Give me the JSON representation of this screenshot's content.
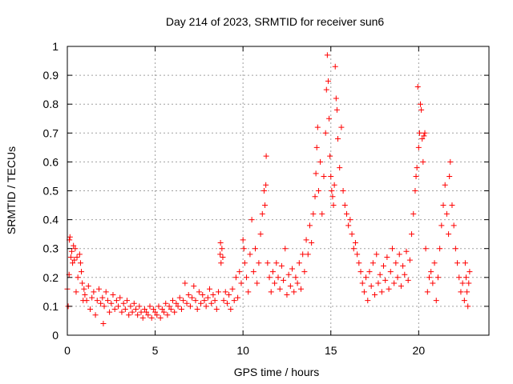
{
  "chart_data": {
    "type": "scatter",
    "title": "Day 214 of 2023, SRMTID for receiver sun6",
    "xlabel": "GPS time / hours",
    "ylabel": "SRMTID / TECUs",
    "xlim": [
      0,
      24
    ],
    "ylim": [
      0,
      1
    ],
    "x_ticks": [
      0,
      5,
      10,
      15,
      20
    ],
    "x_tick_labels": [
      "0",
      "5",
      "10",
      "15",
      "20"
    ],
    "y_ticks": [
      0,
      0.1,
      0.2,
      0.3,
      0.4,
      0.5,
      0.6,
      0.7,
      0.8,
      0.9,
      1
    ],
    "y_tick_labels": [
      "0",
      "0.1",
      "0.2",
      "0.3",
      "0.4",
      "0.5",
      "0.6",
      "0.7",
      "0.8",
      "0.9",
      "1"
    ],
    "grid": true,
    "marker": "+",
    "marker_color": "#ff0000",
    "series": [
      {
        "name": "sun6",
        "points": [
          [
            0.0,
            0.16
          ],
          [
            0.05,
            0.1
          ],
          [
            0.1,
            0.21
          ],
          [
            0.12,
            0.33
          ],
          [
            0.15,
            0.34
          ],
          [
            0.2,
            0.27
          ],
          [
            0.25,
            0.29
          ],
          [
            0.3,
            0.25
          ],
          [
            0.35,
            0.31
          ],
          [
            0.4,
            0.26
          ],
          [
            0.45,
            0.3
          ],
          [
            0.5,
            0.15
          ],
          [
            0.55,
            0.27
          ],
          [
            0.6,
            0.2
          ],
          [
            0.7,
            0.28
          ],
          [
            0.75,
            0.25
          ],
          [
            0.8,
            0.22
          ],
          [
            0.85,
            0.18
          ],
          [
            0.9,
            0.12
          ],
          [
            0.95,
            0.16
          ],
          [
            1.0,
            0.14
          ],
          [
            1.1,
            0.12
          ],
          [
            1.2,
            0.17
          ],
          [
            1.3,
            0.09
          ],
          [
            1.4,
            0.13
          ],
          [
            1.5,
            0.15
          ],
          [
            1.6,
            0.07
          ],
          [
            1.7,
            0.12
          ],
          [
            1.8,
            0.16
          ],
          [
            1.9,
            0.11
          ],
          [
            2.0,
            0.13
          ],
          [
            2.05,
            0.04
          ],
          [
            2.1,
            0.1
          ],
          [
            2.2,
            0.15
          ],
          [
            2.3,
            0.12
          ],
          [
            2.4,
            0.08
          ],
          [
            2.5,
            0.11
          ],
          [
            2.6,
            0.14
          ],
          [
            2.7,
            0.09
          ],
          [
            2.8,
            0.12
          ],
          [
            2.9,
            0.1
          ],
          [
            3.0,
            0.13
          ],
          [
            3.1,
            0.08
          ],
          [
            3.2,
            0.11
          ],
          [
            3.3,
            0.09
          ],
          [
            3.4,
            0.12
          ],
          [
            3.5,
            0.07
          ],
          [
            3.6,
            0.1
          ],
          [
            3.7,
            0.08
          ],
          [
            3.8,
            0.11
          ],
          [
            3.9,
            0.09
          ],
          [
            4.0,
            0.07
          ],
          [
            4.1,
            0.1
          ],
          [
            4.2,
            0.08
          ],
          [
            4.3,
            0.06
          ],
          [
            4.4,
            0.09
          ],
          [
            4.5,
            0.08
          ],
          [
            4.6,
            0.07
          ],
          [
            4.7,
            0.1
          ],
          [
            4.8,
            0.06
          ],
          [
            4.9,
            0.09
          ],
          [
            5.0,
            0.08
          ],
          [
            5.1,
            0.07
          ],
          [
            5.2,
            0.1
          ],
          [
            5.3,
            0.06
          ],
          [
            5.4,
            0.09
          ],
          [
            5.5,
            0.08
          ],
          [
            5.6,
            0.11
          ],
          [
            5.7,
            0.07
          ],
          [
            5.8,
            0.1
          ],
          [
            5.9,
            0.09
          ],
          [
            6.0,
            0.12
          ],
          [
            6.1,
            0.08
          ],
          [
            6.2,
            0.11
          ],
          [
            6.3,
            0.1
          ],
          [
            6.4,
            0.13
          ],
          [
            6.5,
            0.09
          ],
          [
            6.6,
            0.12
          ],
          [
            6.7,
            0.18
          ],
          [
            6.8,
            0.11
          ],
          [
            6.9,
            0.14
          ],
          [
            7.0,
            0.1
          ],
          [
            7.1,
            0.13
          ],
          [
            7.2,
            0.17
          ],
          [
            7.3,
            0.12
          ],
          [
            7.4,
            0.09
          ],
          [
            7.5,
            0.15
          ],
          [
            7.6,
            0.11
          ],
          [
            7.7,
            0.14
          ],
          [
            7.8,
            0.12
          ],
          [
            7.9,
            0.1
          ],
          [
            8.0,
            0.13
          ],
          [
            8.1,
            0.16
          ],
          [
            8.2,
            0.11
          ],
          [
            8.3,
            0.14
          ],
          [
            8.4,
            0.12
          ],
          [
            8.5,
            0.09
          ],
          [
            8.6,
            0.15
          ],
          [
            8.7,
            0.28
          ],
          [
            8.72,
            0.32
          ],
          [
            8.75,
            0.25
          ],
          [
            8.8,
            0.3
          ],
          [
            8.85,
            0.27
          ],
          [
            8.9,
            0.12
          ],
          [
            9.0,
            0.15
          ],
          [
            9.1,
            0.11
          ],
          [
            9.2,
            0.14
          ],
          [
            9.3,
            0.09
          ],
          [
            9.4,
            0.16
          ],
          [
            9.5,
            0.12
          ],
          [
            9.6,
            0.2
          ],
          [
            9.7,
            0.13
          ],
          [
            9.8,
            0.22
          ],
          [
            9.9,
            0.18
          ],
          [
            10.0,
            0.33
          ],
          [
            10.05,
            0.3
          ],
          [
            10.1,
            0.25
          ],
          [
            10.2,
            0.2
          ],
          [
            10.3,
            0.15
          ],
          [
            10.4,
            0.28
          ],
          [
            10.5,
            0.4
          ],
          [
            10.6,
            0.22
          ],
          [
            10.7,
            0.3
          ],
          [
            10.8,
            0.18
          ],
          [
            10.9,
            0.25
          ],
          [
            11.0,
            0.35
          ],
          [
            11.1,
            0.42
          ],
          [
            11.2,
            0.5
          ],
          [
            11.25,
            0.45
          ],
          [
            11.3,
            0.52
          ],
          [
            11.32,
            0.62
          ],
          [
            11.4,
            0.25
          ],
          [
            11.5,
            0.2
          ],
          [
            11.6,
            0.15
          ],
          [
            11.7,
            0.22
          ],
          [
            11.8,
            0.18
          ],
          [
            11.9,
            0.25
          ],
          [
            12.0,
            0.2
          ],
          [
            12.1,
            0.16
          ],
          [
            12.2,
            0.24
          ],
          [
            12.3,
            0.19
          ],
          [
            12.4,
            0.3
          ],
          [
            12.5,
            0.14
          ],
          [
            12.6,
            0.21
          ],
          [
            12.7,
            0.17
          ],
          [
            12.8,
            0.23
          ],
          [
            12.9,
            0.15
          ],
          [
            13.0,
            0.2
          ],
          [
            13.1,
            0.18
          ],
          [
            13.2,
            0.25
          ],
          [
            13.3,
            0.16
          ],
          [
            13.4,
            0.28
          ],
          [
            13.5,
            0.22
          ],
          [
            13.6,
            0.33
          ],
          [
            13.7,
            0.28
          ],
          [
            13.8,
            0.38
          ],
          [
            13.9,
            0.32
          ],
          [
            14.0,
            0.42
          ],
          [
            14.1,
            0.48
          ],
          [
            14.15,
            0.56
          ],
          [
            14.2,
            0.65
          ],
          [
            14.25,
            0.72
          ],
          [
            14.3,
            0.5
          ],
          [
            14.4,
            0.6
          ],
          [
            14.5,
            0.42
          ],
          [
            14.6,
            0.55
          ],
          [
            14.7,
            0.7
          ],
          [
            14.75,
            0.85
          ],
          [
            14.8,
            0.97
          ],
          [
            14.85,
            0.88
          ],
          [
            14.9,
            0.75
          ],
          [
            14.95,
            0.62
          ],
          [
            15.0,
            0.55
          ],
          [
            15.05,
            0.5
          ],
          [
            15.1,
            0.48
          ],
          [
            15.15,
            0.45
          ],
          [
            15.2,
            0.52
          ],
          [
            15.25,
            0.93
          ],
          [
            15.3,
            0.82
          ],
          [
            15.35,
            0.78
          ],
          [
            15.4,
            0.68
          ],
          [
            15.5,
            0.58
          ],
          [
            15.6,
            0.72
          ],
          [
            15.7,
            0.5
          ],
          [
            15.8,
            0.45
          ],
          [
            15.9,
            0.42
          ],
          [
            16.0,
            0.38
          ],
          [
            16.1,
            0.4
          ],
          [
            16.2,
            0.35
          ],
          [
            16.3,
            0.3
          ],
          [
            16.4,
            0.32
          ],
          [
            16.5,
            0.28
          ],
          [
            16.6,
            0.25
          ],
          [
            16.7,
            0.22
          ],
          [
            16.8,
            0.18
          ],
          [
            16.9,
            0.15
          ],
          [
            17.0,
            0.2
          ],
          [
            17.1,
            0.12
          ],
          [
            17.2,
            0.22
          ],
          [
            17.3,
            0.17
          ],
          [
            17.4,
            0.25
          ],
          [
            17.5,
            0.14
          ],
          [
            17.6,
            0.28
          ],
          [
            17.7,
            0.18
          ],
          [
            17.8,
            0.21
          ],
          [
            17.9,
            0.15
          ],
          [
            18.0,
            0.24
          ],
          [
            18.1,
            0.19
          ],
          [
            18.2,
            0.27
          ],
          [
            18.3,
            0.16
          ],
          [
            18.4,
            0.22
          ],
          [
            18.5,
            0.3
          ],
          [
            18.6,
            0.18
          ],
          [
            18.7,
            0.25
          ],
          [
            18.8,
            0.2
          ],
          [
            18.9,
            0.28
          ],
          [
            19.0,
            0.17
          ],
          [
            19.1,
            0.24
          ],
          [
            19.2,
            0.21
          ],
          [
            19.3,
            0.29
          ],
          [
            19.4,
            0.19
          ],
          [
            19.5,
            0.26
          ],
          [
            19.6,
            0.35
          ],
          [
            19.7,
            0.42
          ],
          [
            19.8,
            0.5
          ],
          [
            19.85,
            0.55
          ],
          [
            19.9,
            0.58
          ],
          [
            19.95,
            0.86
          ],
          [
            20.0,
            0.65
          ],
          [
            20.05,
            0.7
          ],
          [
            20.1,
            0.8
          ],
          [
            20.15,
            0.78
          ],
          [
            20.2,
            0.68
          ],
          [
            20.25,
            0.6
          ],
          [
            20.3,
            0.69
          ],
          [
            20.35,
            0.7
          ],
          [
            20.4,
            0.3
          ],
          [
            20.5,
            0.15
          ],
          [
            20.6,
            0.2
          ],
          [
            20.7,
            0.22
          ],
          [
            20.8,
            0.18
          ],
          [
            20.9,
            0.25
          ],
          [
            21.0,
            0.12
          ],
          [
            21.1,
            0.2
          ],
          [
            21.2,
            0.3
          ],
          [
            21.3,
            0.38
          ],
          [
            21.4,
            0.45
          ],
          [
            21.5,
            0.52
          ],
          [
            21.6,
            0.42
          ],
          [
            21.7,
            0.35
          ],
          [
            21.75,
            0.55
          ],
          [
            21.8,
            0.6
          ],
          [
            21.9,
            0.45
          ],
          [
            22.0,
            0.38
          ],
          [
            22.1,
            0.3
          ],
          [
            22.2,
            0.25
          ],
          [
            22.3,
            0.2
          ],
          [
            22.4,
            0.15
          ],
          [
            22.5,
            0.18
          ],
          [
            22.6,
            0.12
          ],
          [
            22.65,
            0.25
          ],
          [
            22.7,
            0.2
          ],
          [
            22.75,
            0.15
          ],
          [
            22.8,
            0.1
          ],
          [
            22.85,
            0.18
          ],
          [
            22.9,
            0.22
          ]
        ]
      }
    ]
  }
}
